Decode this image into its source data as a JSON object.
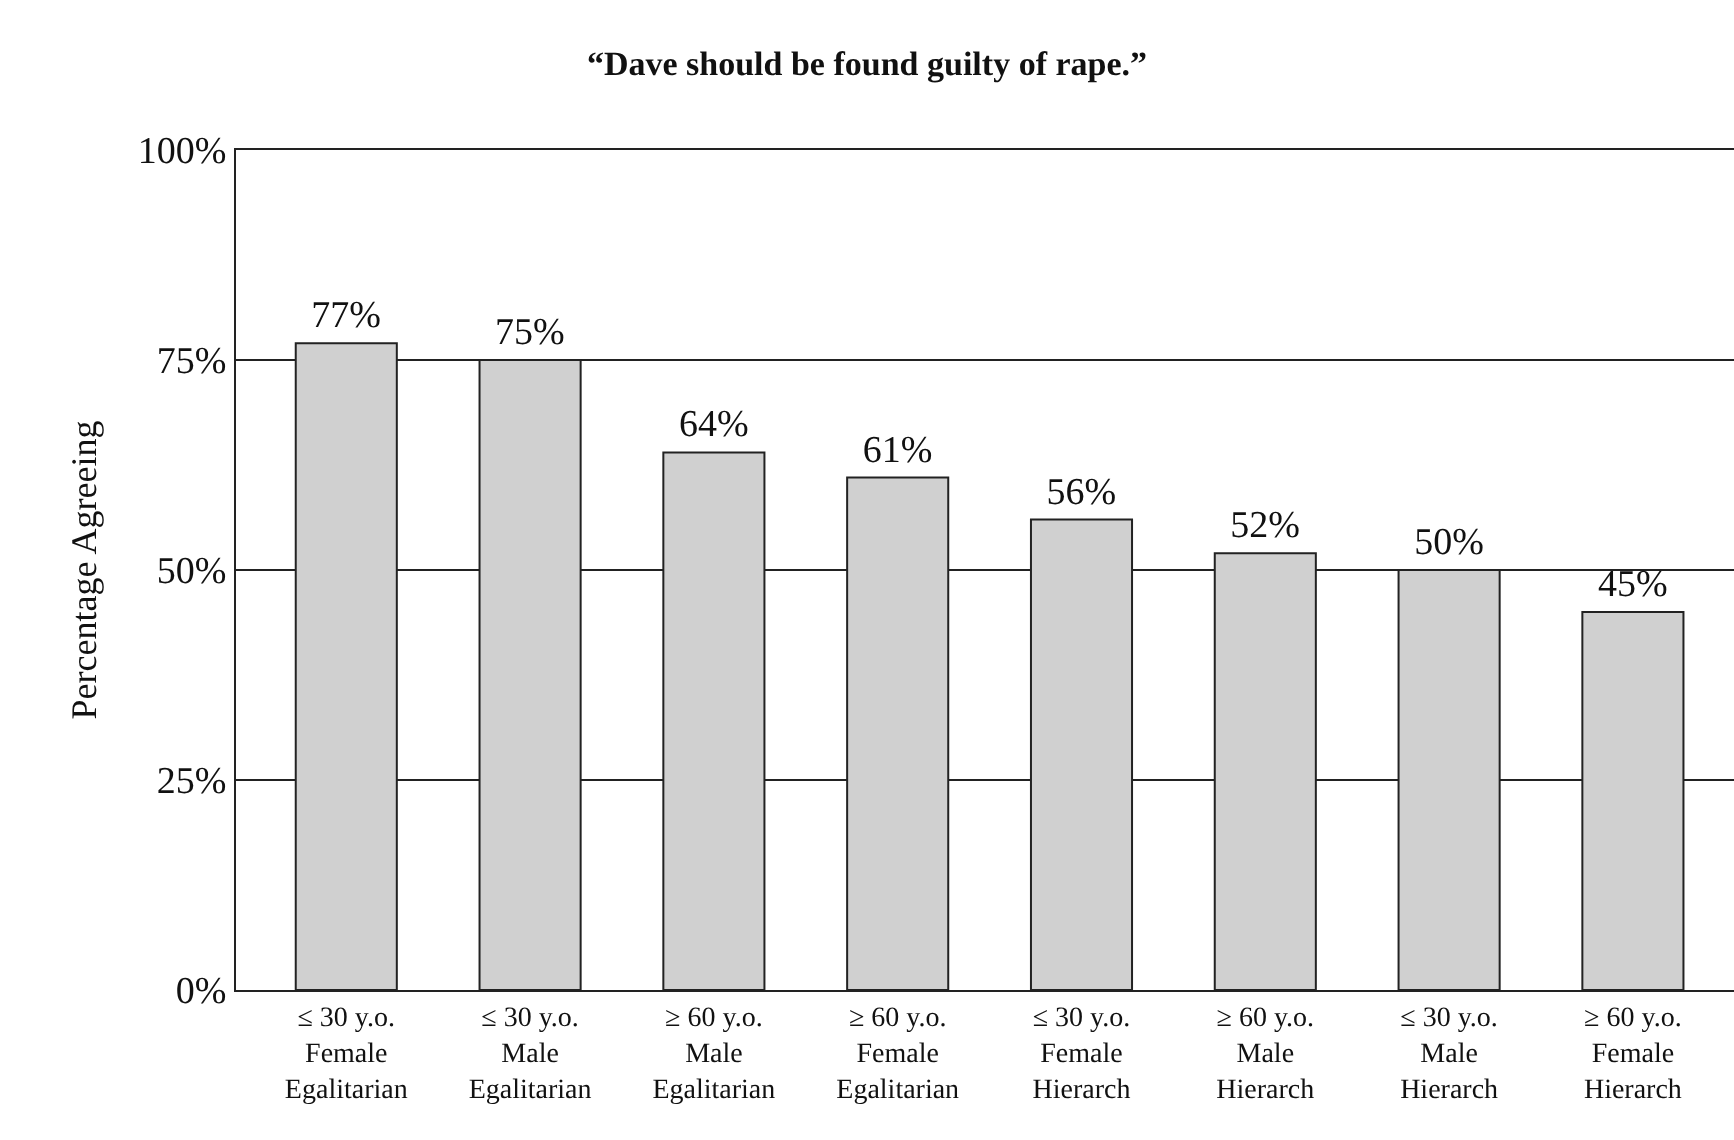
{
  "chart_data": {
    "type": "bar",
    "title": "“Dave should be found guilty of rape.”",
    "ylabel": "Percentage Agreeing",
    "categories": [
      "≤ 30 y.o.\nFemale\nEgalitarian",
      "≤ 30 y.o.\nMale\nEgalitarian",
      "≥ 60 y.o.\nMale\nEgalitarian",
      "≥ 60 y.o.\nFemale\nEgalitarian",
      "≤ 30 y.o.\nFemale\nHierarch",
      "≥ 60 y.o.\nMale\nHierarch",
      "≤ 30 y.o.\nMale\nHierarch",
      "≥ 60 y.o.\nFemale\nHierarch"
    ],
    "values": [
      77,
      75,
      64,
      61,
      56,
      52,
      50,
      45
    ],
    "value_labels": [
      "77%",
      "75%",
      "64%",
      "61%",
      "56%",
      "52%",
      "50%",
      "45%"
    ],
    "color": "#d0d0d0",
    "ylim": [
      0,
      100
    ],
    "yticks": [
      {
        "value": 0,
        "label": "0%"
      },
      {
        "value": 25,
        "label": "25%"
      },
      {
        "value": 50,
        "label": "50%"
      },
      {
        "value": 75,
        "label": "75%"
      },
      {
        "value": 100,
        "label": "100%"
      }
    ],
    "grid": "y"
  }
}
